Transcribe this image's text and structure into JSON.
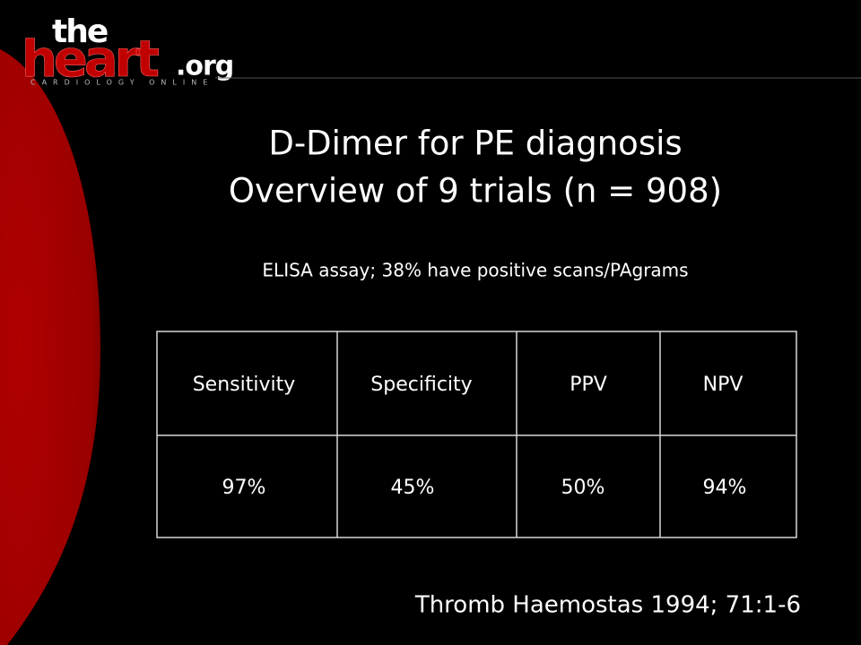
{
  "logo": {
    "the": "the",
    "heart": "heart",
    "org": ".org",
    "tagline": "CARDIOLOGY ONLINE"
  },
  "title": [
    "D-Dimer for PE diagnosis",
    "Overview of 9 trials (n = 908)"
  ],
  "subtitle": "ELISA assay; 38% have positive scans/PAgrams",
  "table": {
    "header": [
      "Sensitivity",
      "Specificity",
      "PPV",
      "NPV"
    ],
    "rows": [
      [
        "97%",
        "45%",
        "50%",
        "94%"
      ]
    ]
  },
  "citation": "Thromb Haemostas 1994; 71:1-6"
}
